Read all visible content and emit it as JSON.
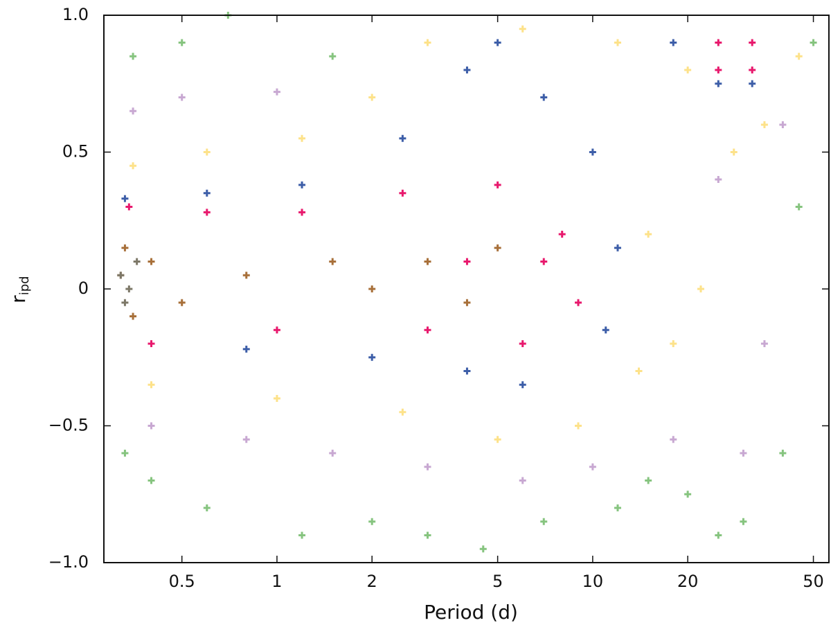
{
  "chart_data": {
    "type": "scatter",
    "xlabel": "Period (d)",
    "ylabel": "r",
    "ylabel_sub": "ipd",
    "xscale": "log",
    "xlim": [
      0.283,
      56
    ],
    "ylim": [
      -1,
      1
    ],
    "xticks": [
      0.5,
      1,
      2,
      5,
      10,
      20,
      50
    ],
    "yticks": [
      {
        "value": -1,
        "label": "−1.0"
      },
      {
        "value": -0.5,
        "label": "−0.5"
      },
      0,
      0.5,
      {
        "value": 1,
        "label": "1.0"
      }
    ],
    "marker": "+",
    "series": [
      {
        "color": "#86c47f",
        "x": [
          0.35,
          0.5,
          0.7,
          0.4,
          0.6,
          1.2,
          2,
          3,
          4.5,
          7,
          12,
          20,
          30,
          40,
          50,
          45,
          0.33,
          1.5,
          15,
          25
        ],
        "values": [
          0.85,
          0.9,
          1.0,
          -0.7,
          -0.8,
          -0.9,
          -0.85,
          -0.9,
          -0.95,
          -0.85,
          -0.8,
          -0.75,
          -0.85,
          -0.6,
          0.9,
          0.3,
          -0.6,
          0.85,
          -0.7,
          -0.9
        ]
      },
      {
        "color": "#c8a8d2",
        "x": [
          0.35,
          0.5,
          1,
          0.4,
          0.8,
          1.5,
          3,
          6,
          10,
          18,
          30,
          40,
          35,
          25
        ],
        "values": [
          0.65,
          0.7,
          0.72,
          -0.5,
          -0.55,
          -0.6,
          -0.65,
          -0.7,
          -0.65,
          -0.55,
          -0.6,
          0.6,
          -0.2,
          0.4
        ]
      },
      {
        "color": "#fde28a",
        "x": [
          0.35,
          0.6,
          1.2,
          2,
          3,
          6,
          12,
          20,
          15,
          18,
          22,
          28,
          35,
          0.4,
          1,
          2.5,
          5,
          9,
          14,
          45
        ],
        "values": [
          0.45,
          0.5,
          0.55,
          0.7,
          0.9,
          0.95,
          0.9,
          0.8,
          0.2,
          -0.2,
          0,
          0.5,
          0.6,
          -0.35,
          -0.4,
          -0.45,
          -0.55,
          -0.5,
          -0.3,
          0.85
        ]
      },
      {
        "color": "#3d5ea8",
        "x": [
          0.33,
          0.6,
          1.2,
          2.5,
          4,
          5,
          7,
          10,
          12,
          11,
          6,
          4,
          2,
          0.8,
          18,
          25,
          32
        ],
        "values": [
          0.33,
          0.35,
          0.38,
          0.55,
          0.8,
          0.9,
          0.7,
          0.5,
          0.15,
          -0.15,
          -0.35,
          -0.3,
          -0.25,
          -0.22,
          0.9,
          0.75,
          0.75
        ]
      },
      {
        "color": "#e8196d",
        "x": [
          0.34,
          0.6,
          1.2,
          2.5,
          5,
          8,
          9,
          6,
          3,
          1,
          0.4,
          25,
          32,
          25,
          32,
          4,
          7
        ],
        "values": [
          0.3,
          0.28,
          0.28,
          0.35,
          0.38,
          0.2,
          -0.05,
          -0.2,
          -0.15,
          -0.15,
          -0.2,
          0.9,
          0.9,
          0.8,
          0.8,
          0.1,
          0.1
        ]
      },
      {
        "color": "#a8703a",
        "x": [
          0.32,
          0.4,
          0.5,
          0.8,
          1.5,
          3,
          5,
          4,
          2,
          0.35,
          0.33
        ],
        "values": [
          0.05,
          0.1,
          -0.05,
          0.05,
          0.1,
          0.1,
          0.15,
          -0.05,
          0,
          -0.1,
          0.15
        ]
      },
      {
        "color": "#7d7868",
        "x": [
          0.32,
          0.34,
          0.36,
          0.33
        ],
        "values": [
          0.05,
          0,
          0.1,
          -0.05
        ]
      }
    ]
  }
}
